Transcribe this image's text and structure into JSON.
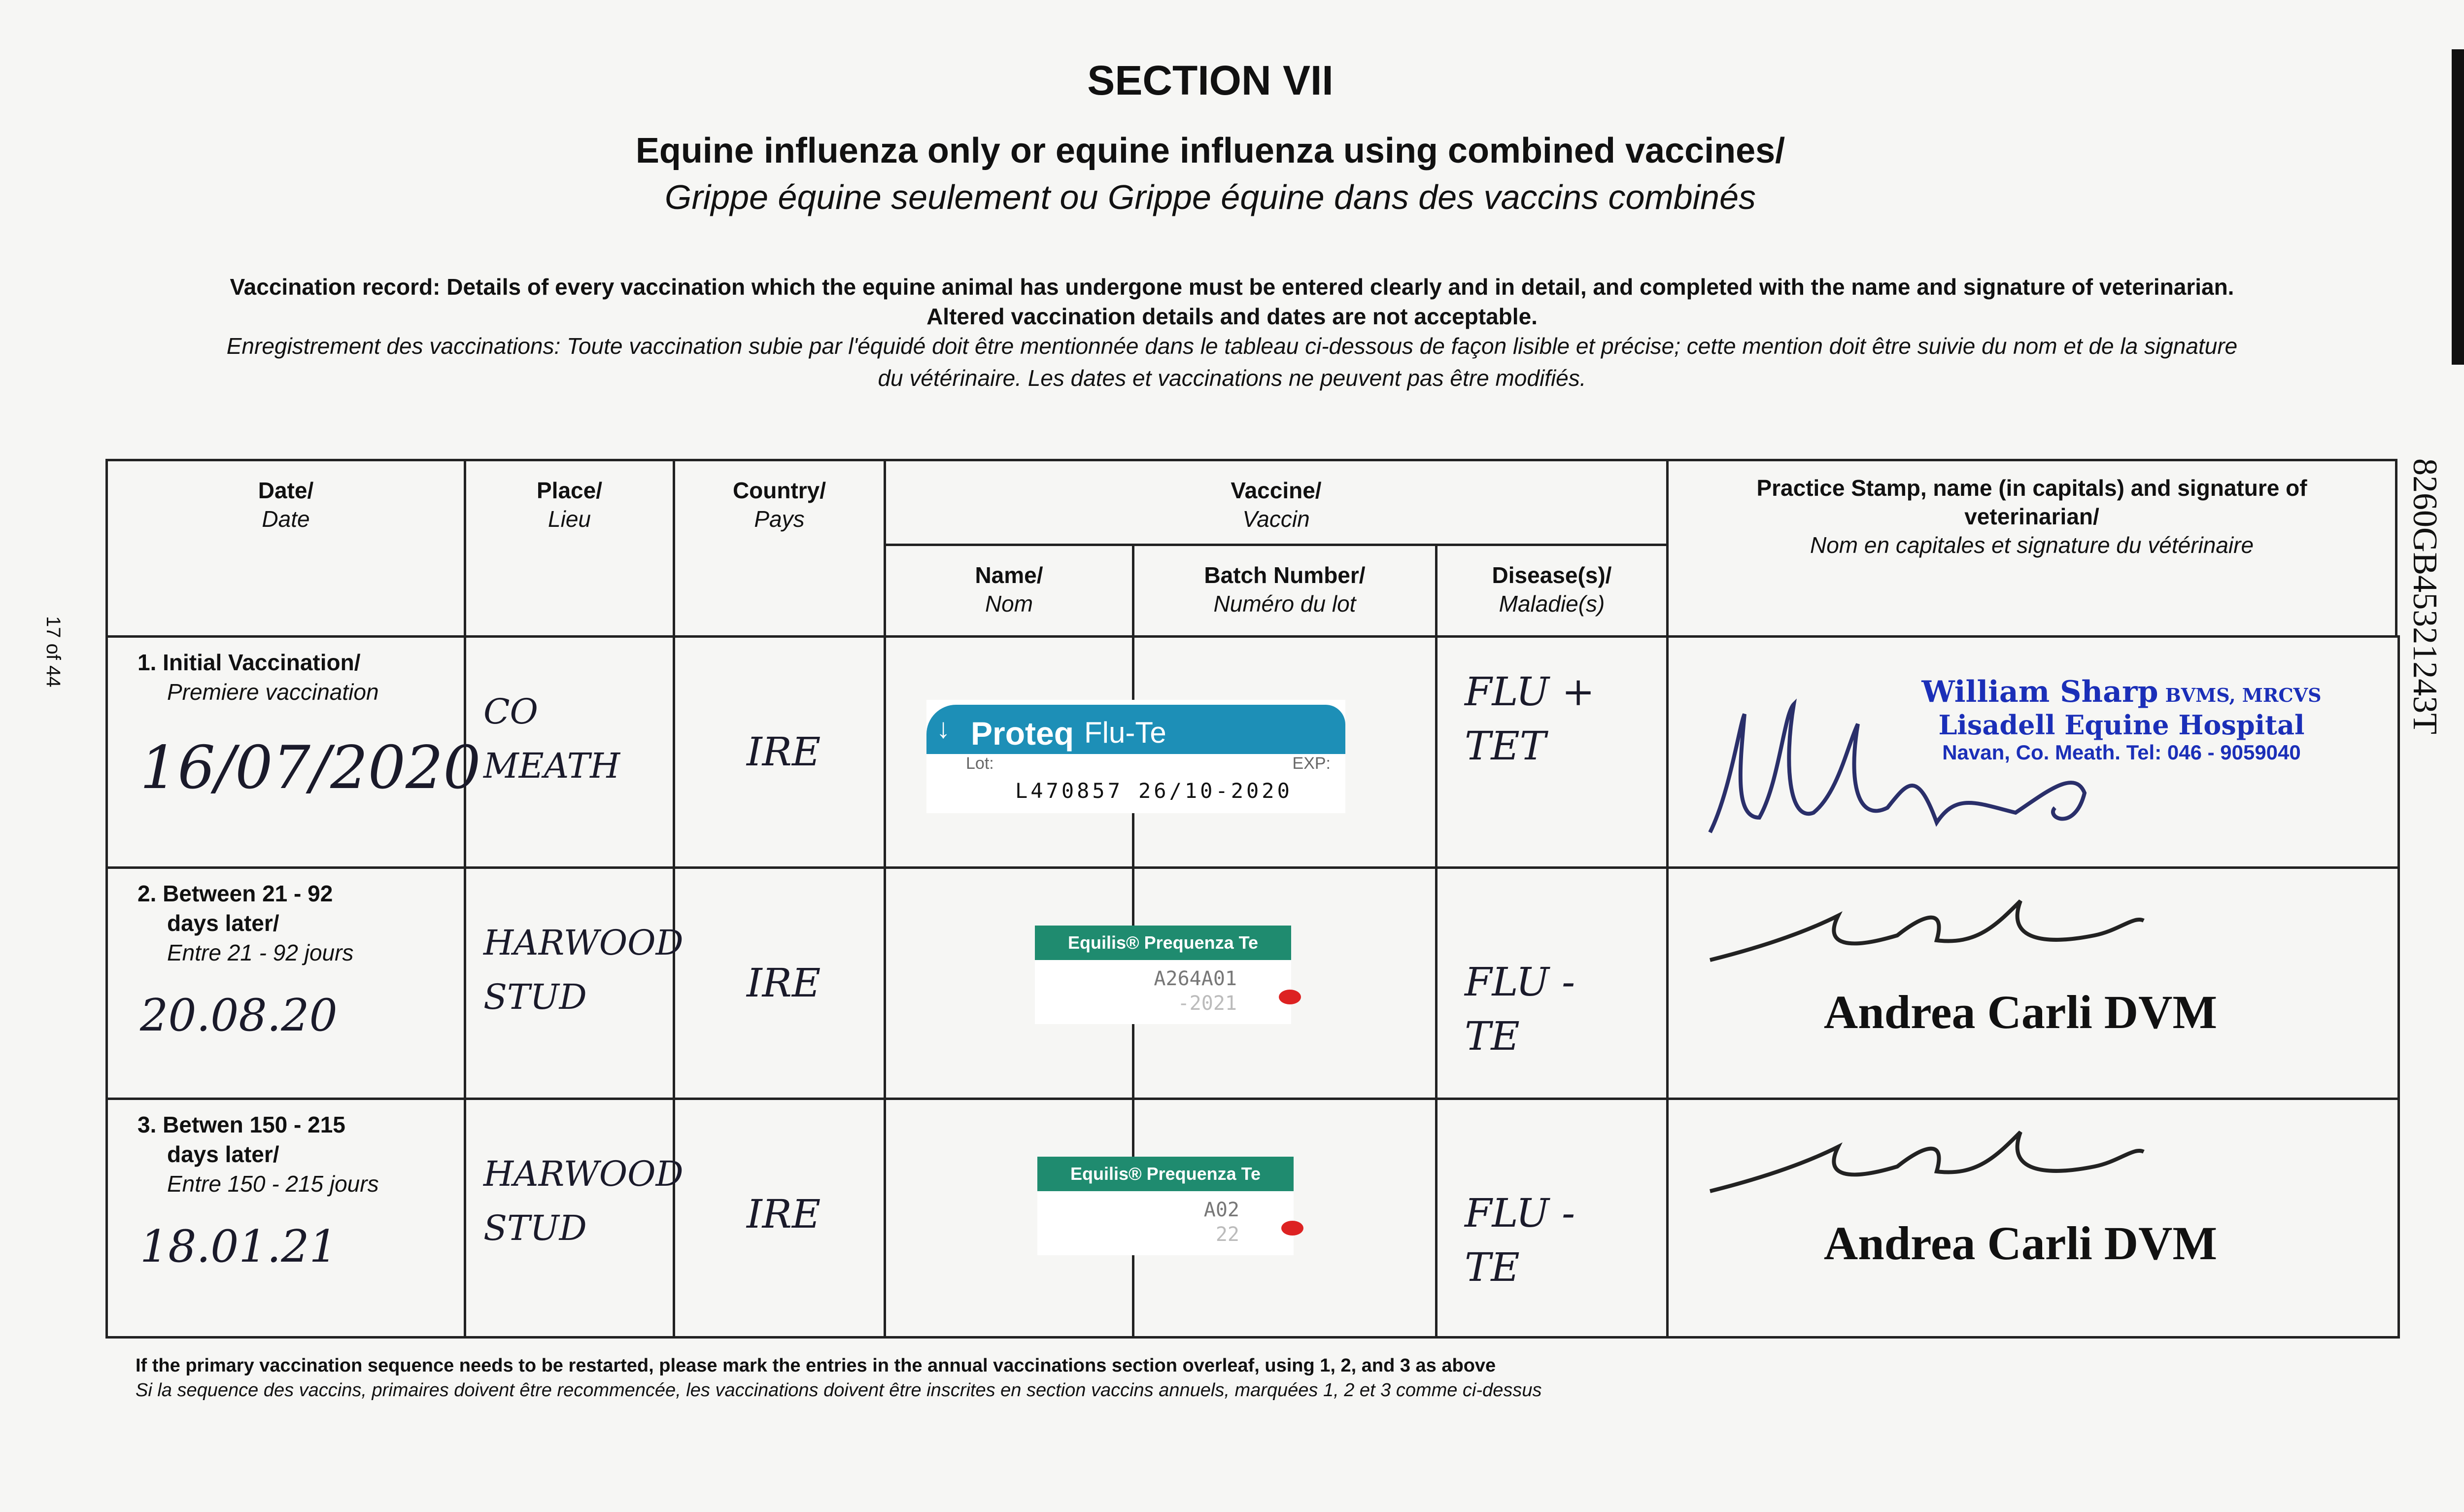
{
  "section": "SECTION VII",
  "title_en": "Equine influenza only or equine influenza using combined vaccines/",
  "title_fr": "Grippe équine seulement ou Grippe équine dans des vaccins combinés",
  "intro": {
    "en_label": "Vaccination record:",
    "en_line1": " Details of every vaccination which the equine animal has undergone must be entered clearly and in detail, and completed with the name and signature of veterinarian.",
    "en_line2": "Altered vaccination details and dates are not acceptable.",
    "fr_label": "Enregistrement des vaccinations:",
    "fr_line1": " Toute vaccination subie par l'équidé doit être mentionnée dans le tableau ci-dessous de façon lisible et précise; cette mention doit être suivie du nom et de la signature",
    "fr_line2": "du vétérinaire. Les dates et vaccinations ne peuvent pas être modifiés."
  },
  "headers": {
    "date": {
      "en": "Date/",
      "fr": "Date"
    },
    "place": {
      "en": "Place/",
      "fr": "Lieu"
    },
    "country": {
      "en": "Country/",
      "fr": "Pays"
    },
    "vaccine": {
      "en": "Vaccine/",
      "fr": "Vaccin"
    },
    "name": {
      "en": "Name/",
      "fr": "Nom"
    },
    "batch": {
      "en": "Batch Number/",
      "fr": "Numéro du lot"
    },
    "disease": {
      "en": "Disease(s)/",
      "fr": "Maladie(s)"
    },
    "stamp": {
      "en": "Practice Stamp, name (in capitals) and signature of veterinarian/",
      "fr": "Nom en capitales et signature du vétérinaire"
    }
  },
  "rows": [
    {
      "label_en": "1. Initial Vaccination/",
      "label_en2": "",
      "label_fr": "Premiere vaccination",
      "date": "16/07/2020",
      "place": "CO MEATH",
      "country": "IRE",
      "disease": "FLU + TET",
      "label": {
        "brand": "Proteq",
        "product": "Flu-Te",
        "lot_label": "Lot:",
        "exp_label": "EXP:",
        "lot": "L470857",
        "exp": "26/10-2020"
      },
      "stamp": {
        "name": "William Sharp",
        "quals": "BVMS, MRCVS",
        "practice": "Lisadell Equine Hospital",
        "address": "Navan, Co. Meath.  Tel: 046 - 9059040"
      }
    },
    {
      "label_en": "2. Between 21 - 92",
      "label_en2": "days later/",
      "label_fr": "Entre 21 - 92 jours",
      "date": "20.08.20",
      "place": "HARWOOD STUD",
      "country": "IRE",
      "disease": "FLU - TE",
      "label": {
        "product": "Equilis® Prequenza Te",
        "lot": "A264A01",
        "exp": "-2021"
      },
      "vet": "Andrea Carli DVM"
    },
    {
      "label_en": "3. Betwen 150 - 215",
      "label_en2": "days later/",
      "label_fr": "Entre 150 - 215 jours",
      "date": "18.01.21",
      "place": "HARWOOD STUD",
      "country": "IRE",
      "disease": "FLU - TE",
      "label": {
        "product": "Equilis® Prequenza Te",
        "lot": "A02",
        "exp": "22"
      },
      "vet": "Andrea Carli DVM"
    }
  ],
  "footer": {
    "en": "If the primary vaccination sequence needs to be restarted, please mark the entries in the annual vaccinations section overleaf, using 1, 2, and 3 as above",
    "fr": "Si la sequence des vaccins, primaires doivent être recommencée, les vaccinations doivent être inscrites en section vaccins annuels, marquées 1, 2 et 3 comme ci-dessus"
  },
  "page_number": "17 of 44",
  "passport_number": "8260GB45321243T",
  "colors": {
    "proteq_blue": "#1d8fb7",
    "equilis_green": "#1f8b6f",
    "stamp_blue": "#1b2fb8"
  }
}
